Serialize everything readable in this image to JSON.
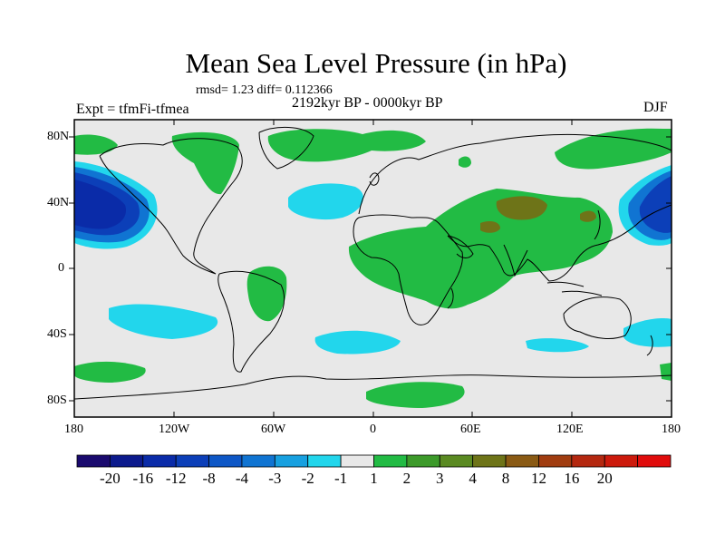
{
  "title": "Mean Sea Level Pressure (in hPa)",
  "stats": "rmsd= 1.23 diff= 0.112366",
  "period": "2192kyr BP - 0000kyr BP",
  "experiment": "Expt = tfmFi-tfmea",
  "season": "DJF",
  "lat_labels": [
    "80N",
    "40N",
    "0",
    "40S",
    "80S"
  ],
  "lon_labels": [
    "180",
    "120W",
    "60W",
    "0",
    "60E",
    "120E",
    "180"
  ],
  "colorbar": {
    "labels": [
      "-20",
      "-16",
      "-12",
      "-8",
      "-4",
      "-3",
      "-2",
      "-1",
      "1",
      "2",
      "3",
      "4",
      "8",
      "12",
      "16",
      "20"
    ],
    "colors": [
      "#1a0a6e",
      "#0c1a8c",
      "#0a2ba8",
      "#0c3fb8",
      "#0e57c6",
      "#1074d2",
      "#17a0e0",
      "#22d6ec",
      "#e8e8e8",
      "#22bb44",
      "#3c9a2a",
      "#5a8a22",
      "#6e7418",
      "#8a5a14",
      "#a03c10",
      "#b42810",
      "#cc1a0c",
      "#e00c0c"
    ]
  },
  "colors": {
    "background_field": "#e8e8e8",
    "positive_light": "#22bb44",
    "positive_dark": "#6e7418",
    "negative_light": "#22d6ec",
    "negative_mid": "#1074d2",
    "negative_dark": "#0c3fb8",
    "negative_core": "#0a2ba8"
  }
}
